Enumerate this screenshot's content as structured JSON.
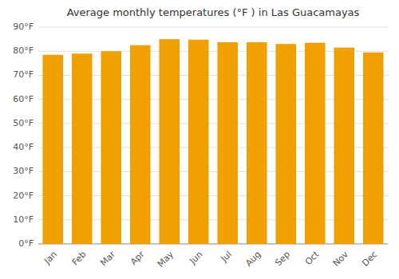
{
  "chart_data": {
    "type": "bar",
    "title": "Average monthly temperatures (°F ) in Las Guacamayas",
    "categories": [
      "Jan",
      "Feb",
      "Mar",
      "Apr",
      "May",
      "Jun",
      "Jul",
      "Aug",
      "Sep",
      "Oct",
      "Nov",
      "Dec"
    ],
    "values": [
      78.5,
      79.0,
      80.0,
      82.5,
      85.0,
      84.8,
      83.7,
      83.7,
      83.0,
      83.5,
      81.5,
      79.5
    ],
    "color": "#F0A000",
    "ylim": [
      0,
      90
    ],
    "yticks": [
      {
        "value": 0,
        "label": "0°F"
      },
      {
        "value": 10,
        "label": "10°F"
      },
      {
        "value": 20,
        "label": "20°F"
      },
      {
        "value": 30,
        "label": "30°F"
      },
      {
        "value": 40,
        "label": "40°F"
      },
      {
        "value": 50,
        "label": "50°F"
      },
      {
        "value": 60,
        "label": "60°F"
      },
      {
        "value": 70,
        "label": "70°F"
      },
      {
        "value": 80,
        "label": "80°F"
      },
      {
        "value": 90,
        "label": "90°F"
      }
    ],
    "grid": true
  }
}
